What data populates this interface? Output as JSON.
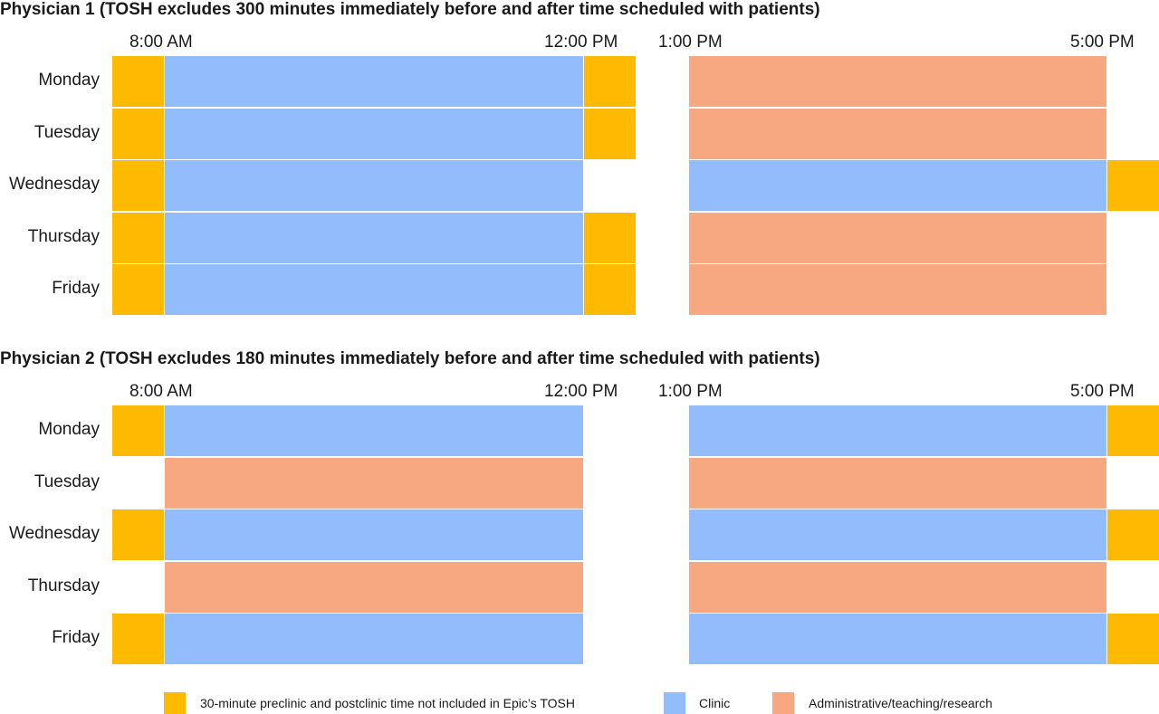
{
  "colors": {
    "prepost": "#FDBA00",
    "clinic": "#93BCFC",
    "admin": "#F8A880"
  },
  "physicians": [
    {
      "title": "Physician 1 (TOSH excludes 300 minutes immediately before and after time scheduled with patients)",
      "times": [
        "8:00 AM",
        "12:00 PM",
        "1:00 PM",
        "5:00 PM"
      ],
      "days": [
        {
          "label": "Monday",
          "pre": true,
          "am": "clinic",
          "am_post": true,
          "pm_pre": false,
          "pm": "admin",
          "pm_post": false
        },
        {
          "label": "Tuesday",
          "pre": true,
          "am": "clinic",
          "am_post": true,
          "pm_pre": false,
          "pm": "admin",
          "pm_post": false
        },
        {
          "label": "Wednesday",
          "pre": true,
          "am": "clinic",
          "am_post": false,
          "pm_pre": false,
          "pm": "clinic",
          "pm_post": true
        },
        {
          "label": "Thursday",
          "pre": true,
          "am": "clinic",
          "am_post": true,
          "pm_pre": false,
          "pm": "admin",
          "pm_post": false
        },
        {
          "label": "Friday",
          "pre": true,
          "am": "clinic",
          "am_post": true,
          "pm_pre": false,
          "pm": "admin",
          "pm_post": false
        }
      ]
    },
    {
      "title": "Physician 2 (TOSH excludes 180 minutes immediately before and after time scheduled with patients)",
      "times": [
        "8:00 AM",
        "12:00 PM",
        "1:00 PM",
        "5:00 PM"
      ],
      "days": [
        {
          "label": "Monday",
          "pre": true,
          "am": "clinic",
          "am_post": false,
          "pm_pre": false,
          "pm": "clinic",
          "pm_post": true
        },
        {
          "label": "Tuesday",
          "pre": false,
          "am": "admin",
          "am_post": false,
          "pm_pre": false,
          "pm": "admin",
          "pm_post": false
        },
        {
          "label": "Wednesday",
          "pre": true,
          "am": "clinic",
          "am_post": false,
          "pm_pre": false,
          "pm": "clinic",
          "pm_post": true
        },
        {
          "label": "Thursday",
          "pre": false,
          "am": "admin",
          "am_post": false,
          "pm_pre": false,
          "pm": "admin",
          "pm_post": false
        },
        {
          "label": "Friday",
          "pre": true,
          "am": "clinic",
          "am_post": false,
          "pm_pre": false,
          "pm": "clinic",
          "pm_post": true
        }
      ]
    }
  ],
  "legend": [
    {
      "key": "prepost",
      "label": "30-minute preclinic and postclinic time not included in Epic’s TOSH"
    },
    {
      "key": "clinic",
      "label": "Clinic"
    },
    {
      "key": "admin",
      "label": "Administrative/teaching/research"
    }
  ]
}
